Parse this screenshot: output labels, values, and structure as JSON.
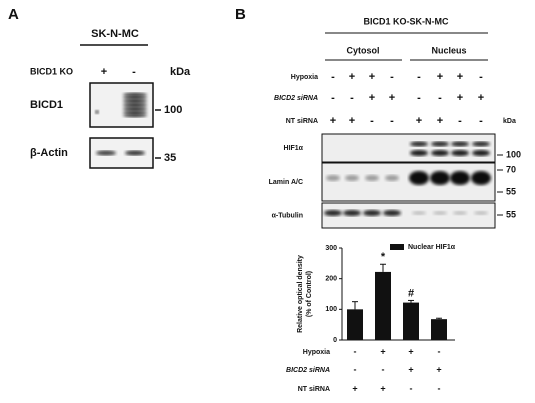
{
  "panel_a": {
    "label": "A",
    "cell_line": "SK-N-MC",
    "kda_label": "kDa",
    "conditions": [
      {
        "name": "BICD1 KO",
        "signs": [
          "+",
          "-"
        ]
      }
    ],
    "blots": [
      {
        "name": "BICD1",
        "markers": [
          "100"
        ]
      },
      {
        "name": "β-Actin",
        "markers": [
          "35"
        ]
      }
    ]
  },
  "panel_b": {
    "label": "B",
    "header": "BICD1 KO-SK-N-MC",
    "fractions": [
      "Cytosol",
      "Nucleus"
    ],
    "kda_label": "kDa",
    "conditions": [
      {
        "name": "Hypoxia",
        "signs": [
          "-",
          "+",
          "+",
          "-",
          "-",
          "+",
          "+",
          "-"
        ]
      },
      {
        "name": "BICD2 siRNA",
        "signs": [
          "-",
          "-",
          "+",
          "+",
          "-",
          "-",
          "+",
          "+"
        ]
      },
      {
        "name": "NT siRNA",
        "signs": [
          "+",
          "+",
          "-",
          "-",
          "+",
          "+",
          "-",
          "-"
        ]
      }
    ],
    "blots": [
      {
        "name": "HIF1α",
        "markers": [
          "100"
        ]
      },
      {
        "name": "Lamin A/C",
        "markers": [
          "70",
          "55"
        ]
      },
      {
        "name": "α-Tubulin",
        "markers": [
          "55"
        ]
      }
    ]
  },
  "chart_data": {
    "type": "bar",
    "y_label": [
      "Relative optical density",
      "(% of Control)"
    ],
    "series": [
      {
        "name": "Nuclear HIF1α",
        "color": "#111111",
        "values": [
          100,
          222,
          122,
          68
        ],
        "errors": [
          25,
          25,
          7,
          3
        ]
      }
    ],
    "annotations": [
      null,
      "*",
      "#",
      null
    ],
    "ylim": [
      0,
      300
    ],
    "yticks": [
      0,
      100,
      200,
      300
    ],
    "conditions": [
      {
        "name": "Hypoxia",
        "signs": [
          "-",
          "+",
          "+",
          "-"
        ]
      },
      {
        "name": "BICD2 siRNA",
        "signs": [
          "-",
          "-",
          "+",
          "+"
        ]
      },
      {
        "name": "NT siRNA",
        "signs": [
          "+",
          "+",
          "-",
          "-"
        ]
      }
    ]
  }
}
